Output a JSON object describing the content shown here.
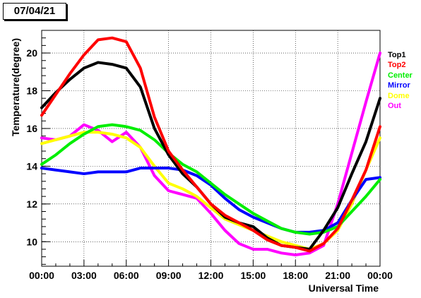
{
  "date_label": "07/04/21",
  "chart_data": {
    "type": "line",
    "xlabel": "Universal Time",
    "ylabel": "Temperature(degree)",
    "xlim": [
      0,
      24
    ],
    "ylim": [
      8.7,
      21.2
    ],
    "x_ticks": [
      "00:00",
      "03:00",
      "06:00",
      "09:00",
      "12:00",
      "15:00",
      "18:00",
      "21:00",
      "00:00"
    ],
    "y_ticks": [
      10,
      12,
      14,
      16,
      18,
      20
    ],
    "grid": "dotted",
    "legend_position": "right",
    "series": [
      {
        "name": "Top1",
        "color": "#000000",
        "x": [
          0,
          1,
          2,
          3,
          4,
          5,
          6,
          7,
          8,
          9,
          10,
          11,
          12,
          13,
          14,
          15,
          16,
          17,
          18,
          19,
          20,
          21,
          22,
          23,
          24
        ],
        "y": [
          17.1,
          17.9,
          18.6,
          19.2,
          19.5,
          19.4,
          19.2,
          18.2,
          16.0,
          14.6,
          13.6,
          12.9,
          12.0,
          11.3,
          11.0,
          10.8,
          10.2,
          9.8,
          9.7,
          9.6,
          10.6,
          11.8,
          13.6,
          15.3,
          17.6
        ]
      },
      {
        "name": "Top2",
        "color": "#ff0000",
        "x": [
          0,
          1,
          2,
          3,
          4,
          5,
          6,
          7,
          8,
          9,
          10,
          11,
          12,
          13,
          14,
          15,
          16,
          17,
          18,
          19,
          20,
          21,
          22,
          23,
          24
        ],
        "y": [
          16.7,
          17.8,
          18.9,
          19.9,
          20.7,
          20.8,
          20.6,
          19.2,
          16.6,
          14.8,
          13.8,
          12.9,
          12.0,
          11.4,
          11.0,
          10.6,
          10.1,
          9.8,
          9.7,
          9.5,
          9.9,
          10.7,
          12.2,
          13.8,
          16.1
        ]
      },
      {
        "name": "Center",
        "color": "#00ee00",
        "x": [
          0,
          1,
          2,
          3,
          4,
          5,
          6,
          7,
          8,
          9,
          10,
          11,
          12,
          13,
          14,
          15,
          16,
          17,
          18,
          19,
          20,
          21,
          22,
          23,
          24
        ],
        "y": [
          14.1,
          14.6,
          15.2,
          15.7,
          16.1,
          16.2,
          16.1,
          15.9,
          15.4,
          14.7,
          14.1,
          13.7,
          13.1,
          12.5,
          12.0,
          11.5,
          11.1,
          10.7,
          10.5,
          10.4,
          10.5,
          10.8,
          11.6,
          12.4,
          13.3
        ]
      },
      {
        "name": "Mirror",
        "color": "#0000ff",
        "x": [
          0,
          1,
          2,
          3,
          4,
          5,
          6,
          7,
          8,
          9,
          10,
          11,
          12,
          13,
          14,
          15,
          16,
          17,
          18,
          19,
          20,
          21,
          22,
          23,
          24
        ],
        "y": [
          13.9,
          13.8,
          13.7,
          13.6,
          13.7,
          13.7,
          13.7,
          13.9,
          13.9,
          13.9,
          13.8,
          13.5,
          13.0,
          12.3,
          11.7,
          11.3,
          11.0,
          10.7,
          10.5,
          10.5,
          10.6,
          11.0,
          12.2,
          13.3,
          13.4
        ]
      },
      {
        "name": "Dome",
        "color": "#ffff00",
        "x": [
          0,
          1,
          2,
          3,
          4,
          5,
          6,
          7,
          8,
          9,
          10,
          11,
          12,
          13,
          14,
          15,
          16,
          17,
          18,
          19,
          20,
          21,
          22,
          23,
          24
        ],
        "y": [
          15.2,
          15.4,
          15.6,
          15.8,
          15.8,
          15.7,
          15.5,
          15.0,
          14.0,
          13.1,
          12.8,
          12.4,
          11.8,
          11.2,
          10.9,
          10.6,
          10.3,
          10.0,
          9.8,
          9.6,
          9.9,
          10.6,
          12.0,
          13.8,
          15.5
        ]
      },
      {
        "name": "Out",
        "color": "#ff00ff",
        "x": [
          0,
          1,
          2,
          3,
          4,
          5,
          6,
          7,
          8,
          9,
          10,
          11,
          12,
          13,
          14,
          15,
          16,
          17,
          18,
          19,
          20,
          21,
          22,
          23,
          24
        ],
        "y": [
          15.5,
          15.4,
          15.6,
          16.2,
          15.9,
          15.3,
          15.8,
          15.0,
          13.5,
          12.7,
          12.5,
          12.3,
          11.5,
          10.6,
          9.9,
          9.6,
          9.6,
          9.4,
          9.3,
          9.4,
          9.8,
          12.0,
          14.7,
          17.4,
          20.0
        ]
      }
    ]
  }
}
